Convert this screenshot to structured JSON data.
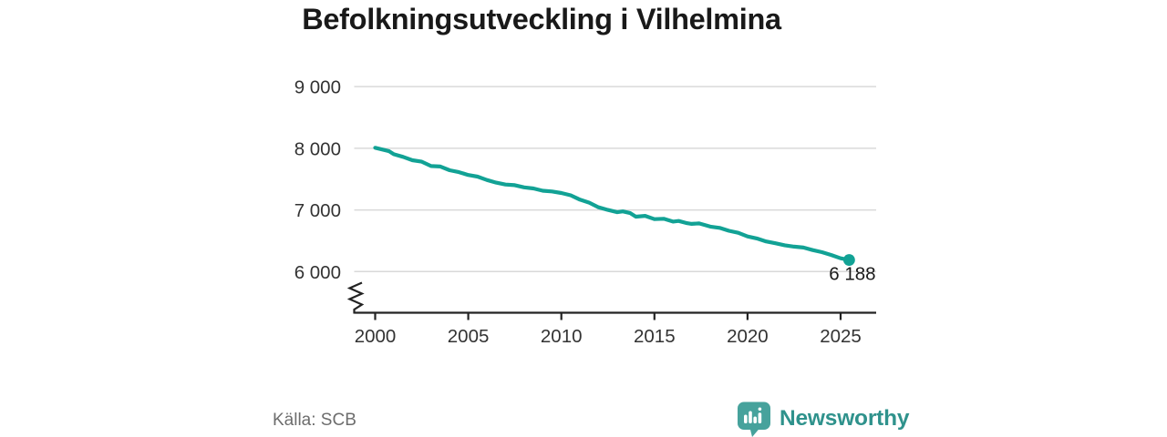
{
  "title": "Befolkningsutveckling i Vilhelmina",
  "source": "Källa: SCB",
  "logo": {
    "name": "Newsworthy"
  },
  "colors": {
    "line": "#12a295",
    "logo_icon": "#46a29c",
    "logo_text": "#2f928c",
    "grid": "#d9d9d9",
    "axis": "#232323"
  },
  "chart_data": {
    "type": "line",
    "title": "Befolkningsutveckling i Vilhelmina",
    "xlabel": "",
    "ylabel": "",
    "grid": "horizontal",
    "legend_position": "none",
    "y_axis_break": true,
    "x_ticks": [
      "2000",
      "2005",
      "2010",
      "2015",
      "2020",
      "2025"
    ],
    "x_tick_values": [
      2000,
      2005,
      2010,
      2015,
      2020,
      2025
    ],
    "y_ticks": [
      "9 000",
      "8 000",
      "7 000",
      "6 000"
    ],
    "y_tick_values": [
      9000,
      8000,
      7000,
      6000
    ],
    "y_range_displayed": [
      6000,
      9000
    ],
    "line_color": "#12a295",
    "series": [
      {
        "name": "Befolkning",
        "points": [
          [
            2000,
            8008
          ],
          [
            2000.75,
            7952
          ],
          [
            2001,
            7903
          ],
          [
            2001.5,
            7860
          ],
          [
            2002,
            7806
          ],
          [
            2002.5,
            7782
          ],
          [
            2003,
            7711
          ],
          [
            2003.5,
            7704
          ],
          [
            2004,
            7644
          ],
          [
            2004.5,
            7612
          ],
          [
            2005,
            7566
          ],
          [
            2005.5,
            7540
          ],
          [
            2006,
            7486
          ],
          [
            2006.5,
            7442
          ],
          [
            2007,
            7412
          ],
          [
            2007.5,
            7401
          ],
          [
            2008,
            7366
          ],
          [
            2008.5,
            7348
          ],
          [
            2009,
            7311
          ],
          [
            2009.5,
            7299
          ],
          [
            2010,
            7274
          ],
          [
            2010.5,
            7238
          ],
          [
            2011,
            7166
          ],
          [
            2011.5,
            7118
          ],
          [
            2012,
            7042
          ],
          [
            2012.5,
            6999
          ],
          [
            2013,
            6963
          ],
          [
            2013.3,
            6976
          ],
          [
            2013.7,
            6948
          ],
          [
            2014,
            6891
          ],
          [
            2014.5,
            6904
          ],
          [
            2015,
            6851
          ],
          [
            2015.5,
            6857
          ],
          [
            2016,
            6810
          ],
          [
            2016.3,
            6821
          ],
          [
            2016.7,
            6788
          ],
          [
            2017,
            6774
          ],
          [
            2017.4,
            6781
          ],
          [
            2018,
            6729
          ],
          [
            2018.5,
            6708
          ],
          [
            2019,
            6661
          ],
          [
            2019.5,
            6629
          ],
          [
            2020,
            6570
          ],
          [
            2020.5,
            6538
          ],
          [
            2021,
            6489
          ],
          [
            2021.5,
            6459
          ],
          [
            2022,
            6426
          ],
          [
            2022.5,
            6404
          ],
          [
            2023,
            6390
          ],
          [
            2023.5,
            6349
          ],
          [
            2024,
            6315
          ],
          [
            2024.5,
            6268
          ],
          [
            2025,
            6216
          ],
          [
            2025.46,
            6188
          ]
        ]
      }
    ],
    "last_point": {
      "x": 2025.46,
      "y": 6188,
      "label": "6 188"
    }
  }
}
